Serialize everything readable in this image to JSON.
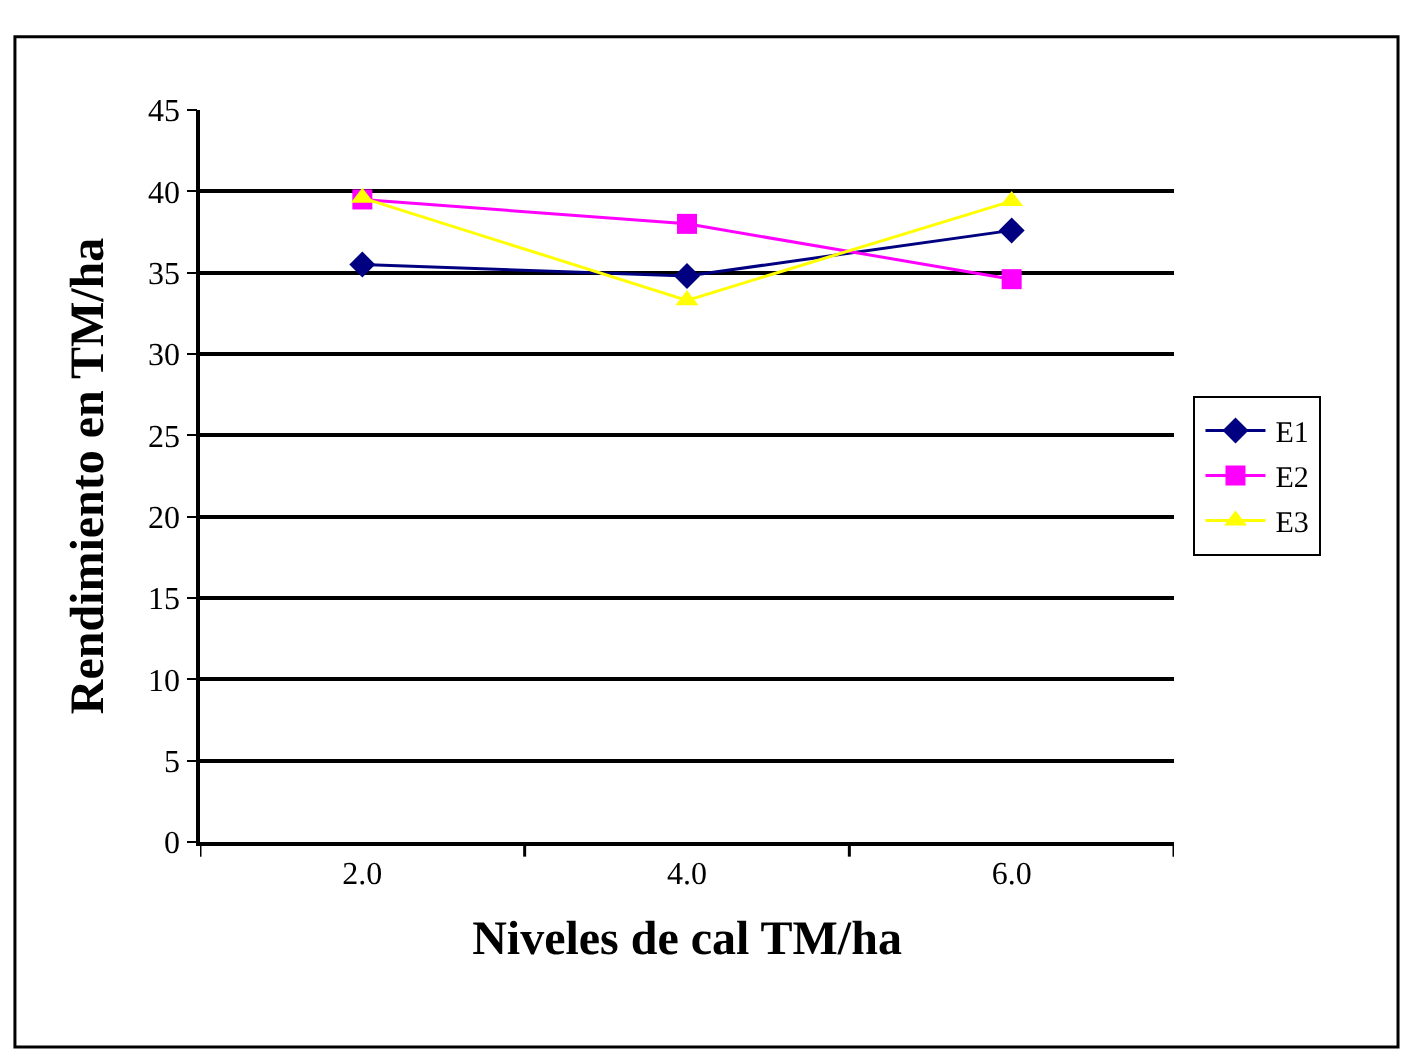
{
  "chart_data": {
    "type": "line",
    "xlabel": "Niveles de cal TM/ha",
    "ylabel": "Rendimiento en TM/ha",
    "categories": [
      "2.0",
      "4.0",
      "6.0"
    ],
    "series": [
      {
        "name": "E1",
        "color": "#000080",
        "values": [
          35.5,
          34.8,
          37.6
        ],
        "marker": "diamond"
      },
      {
        "name": "E2",
        "color": "#ff00ff",
        "values": [
          39.5,
          38.0,
          34.6
        ],
        "marker": "square"
      },
      {
        "name": "E3",
        "color": "#ffff00",
        "values": [
          39.6,
          33.3,
          39.4
        ],
        "marker": "triangle"
      }
    ],
    "ylim": [
      0,
      45
    ],
    "yticks": [
      0,
      5,
      10,
      15,
      20,
      25,
      30,
      35,
      40,
      45
    ],
    "grid": "y",
    "legend": "right"
  }
}
